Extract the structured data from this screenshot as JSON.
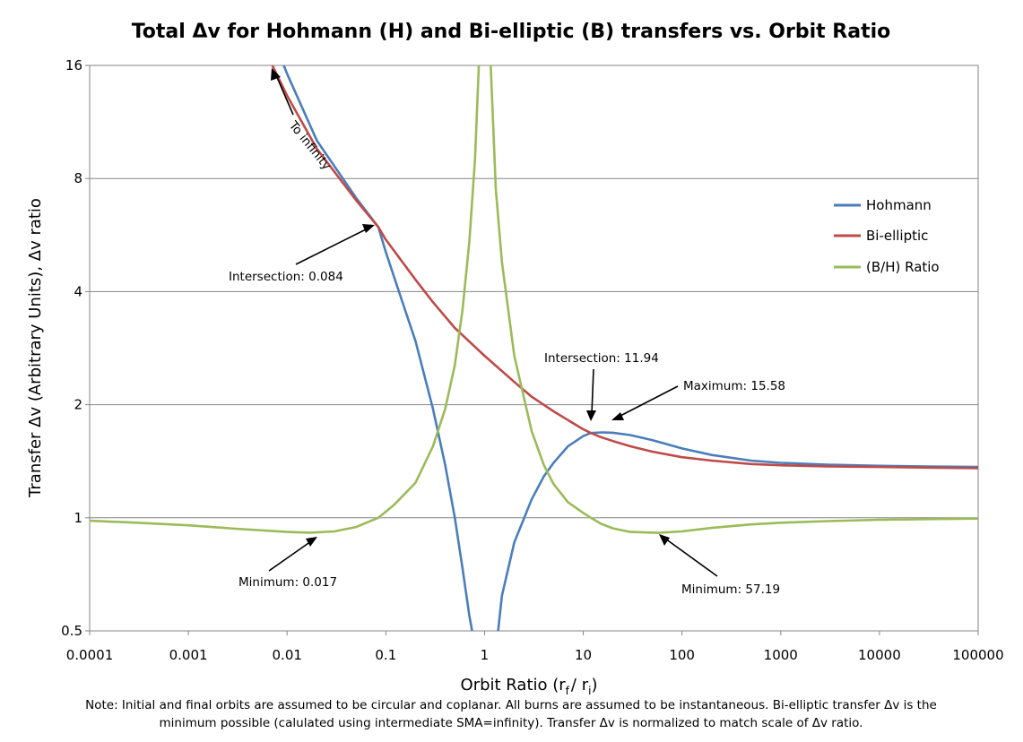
{
  "chart_data": {
    "type": "line",
    "title": "Total Δv for Hohmann (H) and Bi-elliptic (B) transfers vs. Orbit Ratio",
    "xlabel": "Orbit Ratio (r",
    "xlabel_sub_f": "f",
    "xlabel_mid": "/ r",
    "xlabel_sub_i": "i",
    "xlabel_end": ")",
    "ylabel": "Transfer Δv (Arbitrary Units), Δv ratio",
    "x_scale": "log",
    "y_scale": "log",
    "xlim": [
      0.0001,
      100000
    ],
    "ylim": [
      0.5,
      16
    ],
    "x_ticks": [
      "0.0001",
      "0.001",
      "0.01",
      "0.1",
      "1",
      "10",
      "100",
      "1000",
      "10000",
      "100000"
    ],
    "y_ticks": [
      "0.5",
      "1",
      "2",
      "4",
      "8",
      "16"
    ],
    "grid": "horizontal",
    "legend_placement": "right",
    "series": [
      {
        "name": "Hohmann",
        "color": "#4a7ebb",
        "x": [
          0.006,
          0.01,
          0.02,
          0.05,
          0.084,
          0.1,
          0.15,
          0.2,
          0.3,
          0.4,
          0.5,
          0.6,
          0.7,
          0.78,
          null,
          1.35,
          1.5,
          2,
          3,
          4,
          5,
          7,
          10,
          11.94,
          15.58,
          20,
          30,
          50,
          100,
          200,
          500,
          1000,
          3000,
          10000,
          30000,
          100000
        ],
        "y": [
          21.3,
          15.2,
          10.1,
          7.1,
          5.94,
          5.1,
          3.7,
          2.95,
          1.95,
          1.38,
          1.0,
          0.73,
          0.55,
          0.47,
          null,
          0.48,
          0.62,
          0.86,
          1.12,
          1.29,
          1.4,
          1.55,
          1.65,
          1.681,
          1.688,
          1.684,
          1.66,
          1.61,
          1.53,
          1.47,
          1.42,
          1.4,
          1.385,
          1.375,
          1.37,
          1.365
        ]
      },
      {
        "name": "Bi-elliptic",
        "color": "#be4b48",
        "x": [
          0.007,
          0.01,
          0.02,
          0.05,
          0.084,
          0.1,
          0.2,
          0.3,
          0.5,
          1,
          2,
          3,
          5,
          7,
          10,
          11.94,
          15,
          20,
          30,
          50,
          100,
          200,
          500,
          1000,
          3000,
          10000,
          30000,
          100000
        ],
        "y": [
          16.1,
          13.3,
          9.6,
          7.0,
          5.94,
          5.5,
          4.3,
          3.75,
          3.2,
          2.7,
          2.3,
          2.1,
          1.92,
          1.82,
          1.72,
          1.681,
          1.64,
          1.6,
          1.55,
          1.5,
          1.45,
          1.42,
          1.39,
          1.38,
          1.37,
          1.365,
          1.36,
          1.355
        ]
      },
      {
        "name": "(B/H) Ratio",
        "color": "#9bbb59",
        "x": [
          0.0001,
          0.0003,
          0.001,
          0.003,
          0.01,
          0.017,
          0.03,
          0.05,
          0.084,
          0.12,
          0.2,
          0.3,
          0.4,
          0.5,
          0.6,
          0.7,
          0.8,
          0.88,
          null,
          1.15,
          1.3,
          1.5,
          2,
          3,
          4,
          5,
          7,
          10,
          11.94,
          15,
          20,
          30,
          57.19,
          100,
          200,
          500,
          1000,
          3000,
          10000,
          30000,
          100000
        ],
        "y": [
          0.982,
          0.97,
          0.955,
          0.935,
          0.917,
          0.913,
          0.92,
          0.945,
          1.0,
          1.08,
          1.24,
          1.55,
          1.95,
          2.55,
          3.6,
          5.4,
          9.0,
          16.5,
          null,
          16.5,
          7.5,
          4.8,
          2.7,
          1.7,
          1.38,
          1.23,
          1.1,
          1.03,
          1.0,
          0.965,
          0.937,
          0.917,
          0.912,
          0.92,
          0.94,
          0.96,
          0.97,
          0.98,
          0.988,
          0.992,
          0.995
        ]
      }
    ],
    "annotations": [
      {
        "text": "To infinity",
        "x": 0.0065,
        "y": 16
      },
      {
        "text": "Intersection:  0.084",
        "x": 0.084,
        "y": 5.94
      },
      {
        "text": "Intersection:  11.94",
        "x": 11.94,
        "y": 1.681
      },
      {
        "text": "Maximum:  15.58",
        "x": 15.58,
        "y": 1.688
      },
      {
        "text": "Minimum:  0.017",
        "x": 0.017,
        "y": 0.913
      },
      {
        "text": "Minimum:  57.19",
        "x": 57.19,
        "y": 0.912
      }
    ]
  },
  "note": {
    "line1": "Note: Initial and final orbits are assumed to be circular and coplanar. All burns are assumed to be instantaneous.  Bi-elliptic transfer Δv is the",
    "line2": "minimum  possible (calulated using intermediate SMA=infinity).   Transfer Δv is normalized to match scale of Δv ratio."
  }
}
